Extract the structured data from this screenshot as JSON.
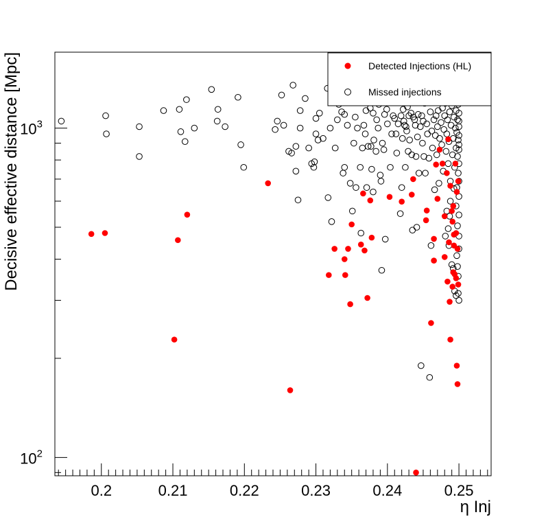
{
  "chart_data": {
    "type": "scatter",
    "xlabel": "η Inj",
    "ylabel": "Decisive effective distance [Mpc]",
    "xlim": [
      0.1935,
      0.2545
    ],
    "ylim": [
      88,
      1700
    ],
    "y_scale": "log",
    "x_ticks": [
      "0.2",
      "0.21",
      "0.22",
      "0.23",
      "0.24",
      "0.25"
    ],
    "x_tick_values": [
      0.2,
      0.21,
      0.22,
      0.23,
      0.24,
      0.25
    ],
    "y_ticks": [
      {
        "base": "10",
        "exp": "2",
        "value": 100
      },
      {
        "base": "10",
        "exp": "3",
        "value": 1000
      }
    ],
    "grid": false,
    "legend_position": "top-right",
    "series": [
      {
        "name": "Detected Injections (HL)",
        "marker": "filled-circle",
        "color": "#ff0000",
        "points": [
          [
            0.1986,
            477
          ],
          [
            0.2005,
            480
          ],
          [
            0.2102,
            228
          ],
          [
            0.2107,
            457
          ],
          [
            0.212,
            546
          ],
          [
            0.2233,
            680
          ],
          [
            0.2264,
            160
          ],
          [
            0.2318,
            358
          ],
          [
            0.2326,
            430
          ],
          [
            0.234,
            400
          ],
          [
            0.2341,
            358
          ],
          [
            0.2345,
            430
          ],
          [
            0.2348,
            292
          ],
          [
            0.235,
            510
          ],
          [
            0.2363,
            443
          ],
          [
            0.2366,
            633
          ],
          [
            0.2368,
            425
          ],
          [
            0.2372,
            305
          ],
          [
            0.2376,
            603
          ],
          [
            0.2378,
            465
          ],
          [
            0.2403,
            618
          ],
          [
            0.242,
            598
          ],
          [
            0.2434,
            628
          ],
          [
            0.2436,
            700
          ],
          [
            0.244,
            90
          ],
          [
            0.2454,
            525
          ],
          [
            0.2455,
            562
          ],
          [
            0.2461,
            256
          ],
          [
            0.2465,
            461
          ],
          [
            0.2465,
            396
          ],
          [
            0.2468,
            775
          ],
          [
            0.247,
            610
          ],
          [
            0.2473,
            860
          ],
          [
            0.2477,
            780
          ],
          [
            0.248,
            540
          ],
          [
            0.248,
            406
          ],
          [
            0.2483,
            730
          ],
          [
            0.2484,
            342
          ],
          [
            0.2485,
            925
          ],
          [
            0.2486,
            450
          ],
          [
            0.2487,
            297
          ],
          [
            0.2488,
            228
          ],
          [
            0.2488,
            668
          ],
          [
            0.249,
            560
          ],
          [
            0.2491,
            520
          ],
          [
            0.2491,
            330
          ],
          [
            0.2492,
            580
          ],
          [
            0.2492,
            365
          ],
          [
            0.2493,
            440
          ],
          [
            0.2493,
            475
          ],
          [
            0.2494,
            360
          ],
          [
            0.2495,
            780
          ],
          [
            0.2496,
            350
          ],
          [
            0.2496,
            480
          ],
          [
            0.2497,
            190
          ],
          [
            0.2497,
            640
          ],
          [
            0.2498,
            430
          ],
          [
            0.2498,
            167
          ],
          [
            0.2499,
            335
          ],
          [
            0.2499,
            690
          ]
        ]
      },
      {
        "name": "Missed injections",
        "marker": "open-circle",
        "color": "#000000",
        "points": [
          [
            0.1944,
            1050
          ],
          [
            0.2006,
            1090
          ],
          [
            0.2007,
            960
          ],
          [
            0.2053,
            1010
          ],
          [
            0.2053,
            820
          ],
          [
            0.2087,
            1130
          ],
          [
            0.2109,
            1140
          ],
          [
            0.2111,
            975
          ],
          [
            0.2117,
            910
          ],
          [
            0.2119,
            1220
          ],
          [
            0.213,
            1000
          ],
          [
            0.2154,
            1310
          ],
          [
            0.2162,
            1050
          ],
          [
            0.2163,
            1140
          ],
          [
            0.2173,
            1010
          ],
          [
            0.2191,
            1240
          ],
          [
            0.2195,
            890
          ],
          [
            0.2199,
            760
          ],
          [
            0.2243,
            990
          ],
          [
            0.2246,
            1050
          ],
          [
            0.2252,
            1260
          ],
          [
            0.2255,
            1020
          ],
          [
            0.2262,
            850
          ],
          [
            0.2266,
            840
          ],
          [
            0.2268,
            1350
          ],
          [
            0.2272,
            880
          ],
          [
            0.2272,
            740
          ],
          [
            0.2275,
            605
          ],
          [
            0.2278,
            1130
          ],
          [
            0.2278,
            1000
          ],
          [
            0.2285,
            1230
          ],
          [
            0.229,
            870
          ],
          [
            0.2294,
            780
          ],
          [
            0.2297,
            760
          ],
          [
            0.2298,
            790
          ],
          [
            0.23,
            1070
          ],
          [
            0.23,
            960
          ],
          [
            0.2303,
            920
          ],
          [
            0.2305,
            1110
          ],
          [
            0.231,
            930
          ],
          [
            0.2316,
            1320
          ],
          [
            0.2317,
            615
          ],
          [
            0.232,
            1000
          ],
          [
            0.2322,
            520
          ],
          [
            0.2327,
            870
          ],
          [
            0.233,
            1060
          ],
          [
            0.2332,
            1180
          ],
          [
            0.2336,
            1120
          ],
          [
            0.2338,
            730
          ],
          [
            0.234,
            1100
          ],
          [
            0.234,
            760
          ],
          [
            0.2344,
            1020
          ],
          [
            0.2346,
            1230
          ],
          [
            0.2348,
            680
          ],
          [
            0.2351,
            560
          ],
          [
            0.2353,
            900
          ],
          [
            0.2355,
            1080
          ],
          [
            0.2356,
            660
          ],
          [
            0.2358,
            1000
          ],
          [
            0.236,
            1220
          ],
          [
            0.2362,
            760
          ],
          [
            0.2363,
            480
          ],
          [
            0.2365,
            870
          ],
          [
            0.2367,
            1020
          ],
          [
            0.2368,
            1300
          ],
          [
            0.2369,
            960
          ],
          [
            0.237,
            1130
          ],
          [
            0.2371,
            660
          ],
          [
            0.2372,
            1240
          ],
          [
            0.2373,
            880
          ],
          [
            0.2376,
            1150
          ],
          [
            0.2377,
            880
          ],
          [
            0.2378,
            750
          ],
          [
            0.238,
            1110
          ],
          [
            0.238,
            640
          ],
          [
            0.2381,
            920
          ],
          [
            0.2382,
            1210
          ],
          [
            0.2384,
            850
          ],
          [
            0.2385,
            1060
          ],
          [
            0.2387,
            1000
          ],
          [
            0.2388,
            1180
          ],
          [
            0.2389,
            1430
          ],
          [
            0.239,
            720
          ],
          [
            0.2391,
            690
          ],
          [
            0.2392,
            370
          ],
          [
            0.2393,
            900
          ],
          [
            0.2395,
            860
          ],
          [
            0.2396,
            1100
          ],
          [
            0.2397,
            460
          ],
          [
            0.2399,
            1140
          ],
          [
            0.24,
            1030
          ],
          [
            0.2402,
            1280
          ],
          [
            0.2404,
            760
          ],
          [
            0.2406,
            960
          ],
          [
            0.2407,
            1360
          ],
          [
            0.2408,
            1090
          ],
          [
            0.2409,
            1230
          ],
          [
            0.241,
            1070
          ],
          [
            0.2412,
            960
          ],
          [
            0.2413,
            840
          ],
          [
            0.2414,
            1200
          ],
          [
            0.2415,
            1030
          ],
          [
            0.2416,
            1280
          ],
          [
            0.2418,
            550
          ],
          [
            0.2419,
            1090
          ],
          [
            0.242,
            660
          ],
          [
            0.2421,
            930
          ],
          [
            0.2422,
            1140
          ],
          [
            0.2423,
            1050
          ],
          [
            0.2424,
            1020
          ],
          [
            0.2425,
            760
          ],
          [
            0.2426,
            1010
          ],
          [
            0.2427,
            980
          ],
          [
            0.2428,
            1160
          ],
          [
            0.2429,
            850
          ],
          [
            0.243,
            1090
          ],
          [
            0.2431,
            920
          ],
          [
            0.2432,
            1200
          ],
          [
            0.2433,
            1110
          ],
          [
            0.2434,
            830
          ],
          [
            0.2435,
            490
          ],
          [
            0.2436,
            1080
          ],
          [
            0.2437,
            1260
          ],
          [
            0.2438,
            1060
          ],
          [
            0.2439,
            1020
          ],
          [
            0.244,
            820
          ],
          [
            0.2441,
            500
          ],
          [
            0.2442,
            940
          ],
          [
            0.2443,
            1100
          ],
          [
            0.2444,
            730
          ],
          [
            0.2446,
            1010
          ],
          [
            0.2447,
            190
          ],
          [
            0.2448,
            1090
          ],
          [
            0.2449,
            900
          ],
          [
            0.245,
            1050
          ],
          [
            0.2451,
            820
          ],
          [
            0.2452,
            1190
          ],
          [
            0.2453,
            730
          ],
          [
            0.2454,
            1230
          ],
          [
            0.2455,
            1030
          ],
          [
            0.2456,
            960
          ],
          [
            0.2457,
            1420
          ],
          [
            0.2458,
            810
          ],
          [
            0.2459,
            175
          ],
          [
            0.246,
            1120
          ],
          [
            0.2461,
            440
          ],
          [
            0.2462,
            980
          ],
          [
            0.2463,
            870
          ],
          [
            0.2464,
            1210
          ],
          [
            0.2465,
            1060
          ],
          [
            0.2466,
            650
          ],
          [
            0.2467,
            950
          ],
          [
            0.2468,
            1090
          ],
          [
            0.2469,
            830
          ],
          [
            0.247,
            1010
          ],
          [
            0.2471,
            1130
          ],
          [
            0.2472,
            680
          ],
          [
            0.2473,
            930
          ],
          [
            0.2474,
            1250
          ],
          [
            0.2475,
            1040
          ],
          [
            0.2476,
            890
          ],
          [
            0.2477,
            1150
          ],
          [
            0.2478,
            740
          ],
          [
            0.2479,
            990
          ],
          [
            0.248,
            1090
          ],
          [
            0.2481,
            1190
          ],
          [
            0.2482,
            850
          ],
          [
            0.2483,
            960
          ],
          [
            0.2484,
            1060
          ],
          [
            0.2485,
            780
          ],
          [
            0.2486,
            910
          ],
          [
            0.2487,
            1120
          ],
          [
            0.2488,
            690
          ],
          [
            0.2489,
            1020
          ],
          [
            0.249,
            1170
          ],
          [
            0.2491,
            830
          ],
          [
            0.2491,
            1440
          ],
          [
            0.2492,
            930
          ],
          [
            0.2493,
            1080
          ],
          [
            0.2494,
            760
          ],
          [
            0.2495,
            1000
          ],
          [
            0.2495,
            1250
          ],
          [
            0.2496,
            870
          ],
          [
            0.2496,
            1130
          ],
          [
            0.2497,
            660
          ],
          [
            0.2497,
            970
          ],
          [
            0.2498,
            1060
          ],
          [
            0.2498,
            820
          ],
          [
            0.2498,
            1390
          ],
          [
            0.2499,
            920
          ],
          [
            0.2499,
            1180
          ],
          [
            0.2499,
            730
          ],
          [
            0.25,
            1010
          ],
          [
            0.25,
            860
          ],
          [
            0.25,
            1110
          ],
          [
            0.25,
            620
          ],
          [
            0.25,
            950
          ],
          [
            0.25,
            1300
          ],
          [
            0.25,
            780
          ],
          [
            0.25,
            1050
          ],
          [
            0.25,
            690
          ],
          [
            0.25,
            890
          ],
          [
            0.25,
            1200
          ],
          [
            0.249,
            385
          ],
          [
            0.2492,
            375
          ],
          [
            0.2494,
            320
          ],
          [
            0.2496,
            310
          ],
          [
            0.2497,
            410
          ],
          [
            0.2498,
            380
          ],
          [
            0.2499,
            355
          ],
          [
            0.2499,
            315
          ],
          [
            0.25,
            300
          ],
          [
            0.25,
            545
          ],
          [
            0.2487,
            540
          ],
          [
            0.2486,
            440
          ],
          [
            0.2485,
            495
          ],
          [
            0.2483,
            560
          ],
          [
            0.2481,
            470
          ],
          [
            0.2488,
            600
          ],
          [
            0.2496,
            580
          ],
          [
            0.25,
            470
          ],
          [
            0.25,
            430
          ],
          [
            0.2498,
            505
          ],
          [
            0.2493,
            655
          ]
        ]
      }
    ]
  }
}
